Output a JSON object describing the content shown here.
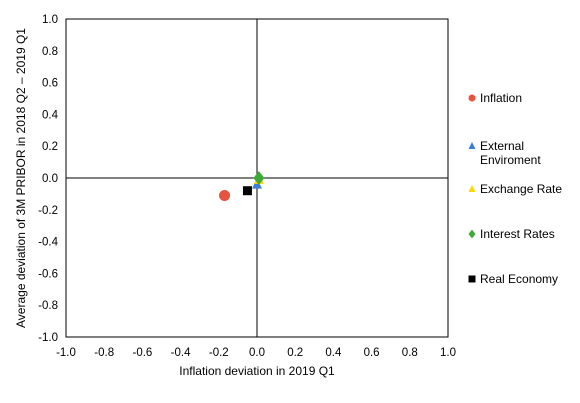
{
  "chart_data": {
    "type": "scatter",
    "xlabel": "Inflation deviation in 2019 Q1",
    "ylabel": "Average deviation of 3M PRIBOR in 2018 Q2 – 2019 Q1",
    "xlim": [
      -1.0,
      1.0
    ],
    "ylim": [
      -1.0,
      1.0
    ],
    "x_ticks": [
      "-1.0",
      "-0.8",
      "-0.6",
      "-0.4",
      "-0.2",
      "0.0",
      "0.2",
      "0.4",
      "0.6",
      "0.8",
      "1.0"
    ],
    "y_ticks": [
      "1.0",
      "0.8",
      "0.6",
      "0.4",
      "0.2",
      "0.0",
      "-0.2",
      "-0.4",
      "-0.6",
      "-0.8",
      "-1.0"
    ],
    "grid": false,
    "zero_lines": true,
    "legend_position": "right",
    "series": [
      {
        "name": "Inflation",
        "marker": "circle",
        "color": "#E8533F",
        "x": -0.17,
        "y": -0.11
      },
      {
        "name": "External Enviroment",
        "label_lines": [
          "External",
          "Enviroment"
        ],
        "marker": "triangle",
        "color": "#3A7FD5",
        "x": 0.0,
        "y": -0.04
      },
      {
        "name": "Exchange Rate",
        "marker": "triangle",
        "color": "#FFD700",
        "x": 0.01,
        "y": -0.01
      },
      {
        "name": "Interest Rates",
        "marker": "diamond",
        "color": "#3DAA35",
        "x": 0.01,
        "y": 0.0
      },
      {
        "name": "Real Economy",
        "marker": "square",
        "color": "#000000",
        "x": -0.05,
        "y": -0.08
      }
    ]
  }
}
